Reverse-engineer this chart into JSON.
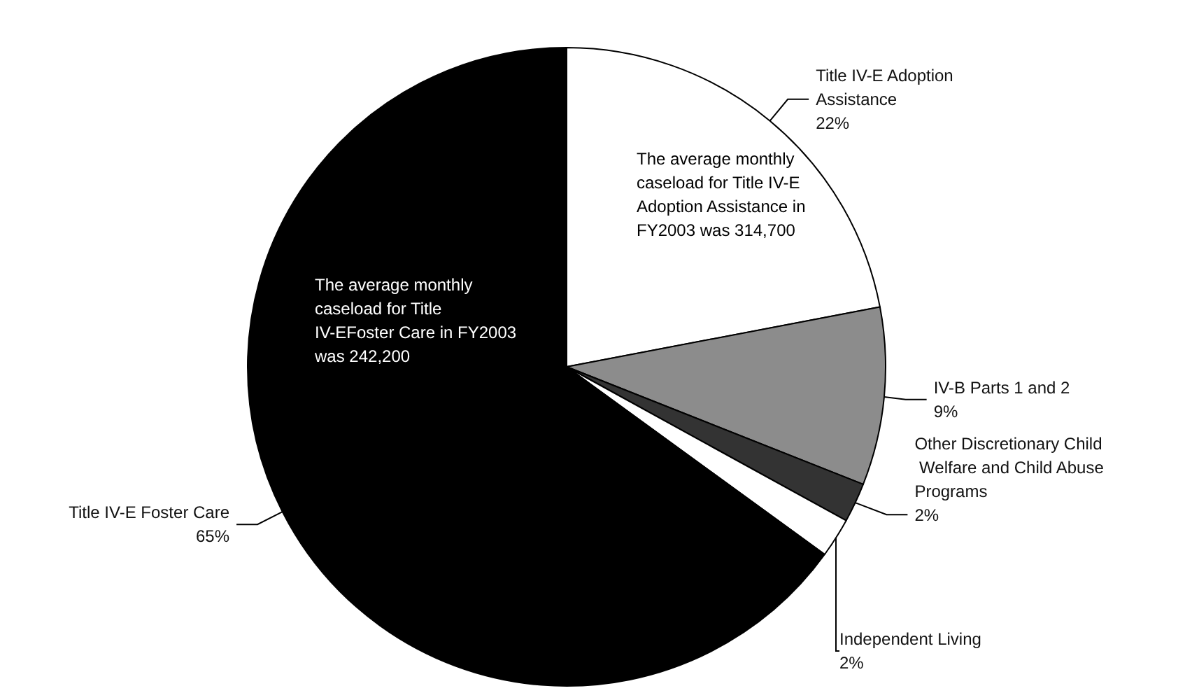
{
  "chart_data": {
    "type": "pie",
    "categories": [
      "Title IV-E Adoption Assistance",
      "IV-B Parts 1 and 2",
      "Other Discretionary Child Welfare and Child Abuse Programs",
      "Independent Living",
      "Title IV-E Foster Care"
    ],
    "values": [
      22,
      9,
      2,
      2,
      65
    ],
    "colors": [
      "#ffffff",
      "#8c8c8c",
      "#333333",
      "#ffffff",
      "#000000"
    ],
    "annotations": [
      {
        "text": "The average monthly caseload for Title IV-E Adoption Assistance in FY2003 was 314,700"
      },
      {
        "text": "The average monthly caseload for Title IV-EFoster Care in FY2003 was 242,200"
      }
    ],
    "value_labels": [
      "22%",
      "9%",
      "2%",
      "2%",
      "65%"
    ],
    "legend": false
  }
}
